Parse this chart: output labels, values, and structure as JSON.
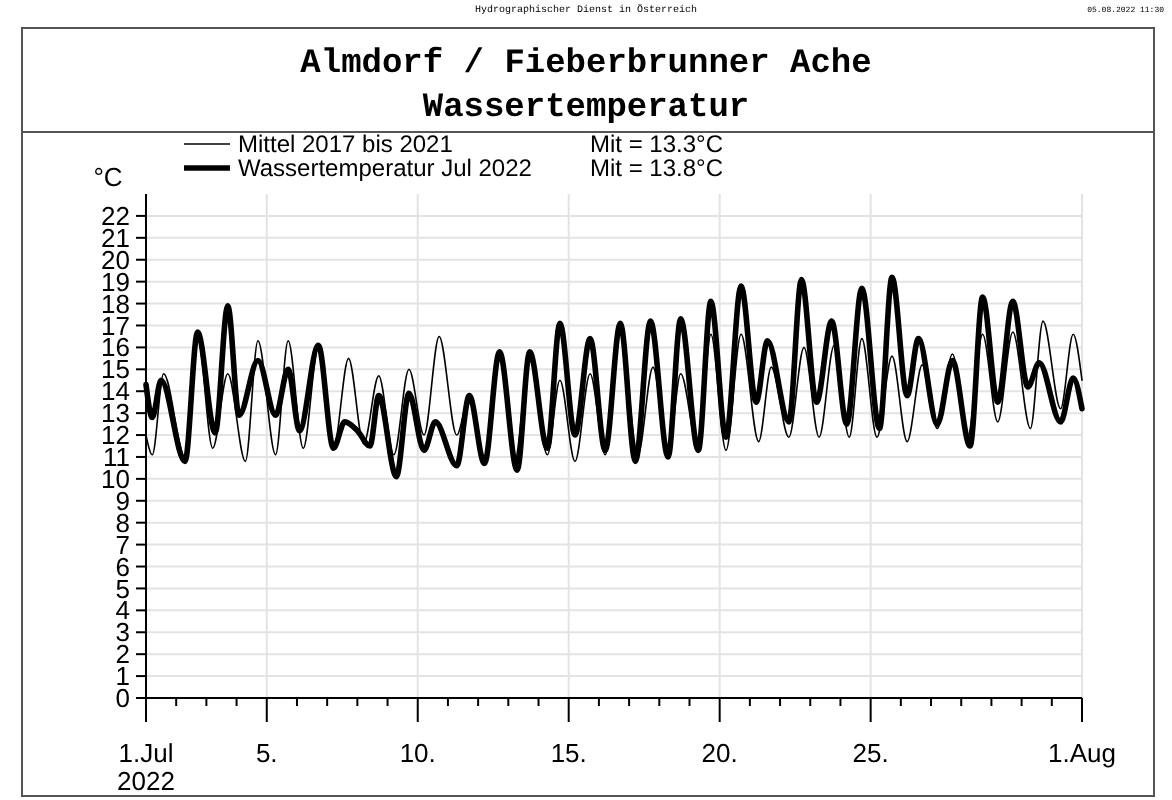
{
  "chart_data": {
    "type": "line",
    "title": "Almdorf / Fieberbrunner Ache\nWassertemperatur",
    "ylabel": "°C",
    "annotations": [
      "Hydrographischer Dienst in Österreich",
      "05.08.2022 11:30",
      "Mit = 13.3°C",
      "Mit = 13.8°C"
    ],
    "xlim": [
      "2022-07-01",
      "2022-08-01"
    ],
    "xticks": [
      {
        "value": "2022-07-01",
        "label": "1.Jul\n2022"
      },
      {
        "value": "2022-07-02",
        "label": null
      },
      {
        "value": "2022-07-03",
        "label": null
      },
      {
        "value": "2022-07-04",
        "label": null
      },
      {
        "value": "2022-07-05",
        "label": "5."
      },
      {
        "value": "2022-07-06",
        "label": null
      },
      {
        "value": "2022-07-07",
        "label": null
      },
      {
        "value": "2022-07-08",
        "label": null
      },
      {
        "value": "2022-07-09",
        "label": null
      },
      {
        "value": "2022-07-10",
        "label": "10."
      },
      {
        "value": "2022-07-11",
        "label": null
      },
      {
        "value": "2022-07-12",
        "label": null
      },
      {
        "value": "2022-07-13",
        "label": null
      },
      {
        "value": "2022-07-14",
        "label": null
      },
      {
        "value": "2022-07-15",
        "label": "15."
      },
      {
        "value": "2022-07-16",
        "label": null
      },
      {
        "value": "2022-07-17",
        "label": null
      },
      {
        "value": "2022-07-18",
        "label": null
      },
      {
        "value": "2022-07-19",
        "label": null
      },
      {
        "value": "2022-07-20",
        "label": "20."
      },
      {
        "value": "2022-07-21",
        "label": null
      },
      {
        "value": "2022-07-22",
        "label": null
      },
      {
        "value": "2022-07-23",
        "label": null
      },
      {
        "value": "2022-07-24",
        "label": null
      },
      {
        "value": "2022-07-25",
        "label": "25."
      },
      {
        "value": "2022-07-26",
        "label": null
      },
      {
        "value": "2022-07-27",
        "label": null
      },
      {
        "value": "2022-07-28",
        "label": null
      },
      {
        "value": "2022-07-29",
        "label": null
      },
      {
        "value": "2022-07-30",
        "label": null
      },
      {
        "value": "2022-07-31",
        "label": null
      },
      {
        "value": "2022-08-01",
        "label": "1.Aug"
      }
    ],
    "ylim": [
      0,
      23
    ],
    "yticks": [
      0,
      1,
      2,
      3,
      4,
      5,
      6,
      7,
      8,
      9,
      10,
      11,
      12,
      13,
      14,
      15,
      16,
      17,
      18,
      19,
      20,
      21,
      22
    ],
    "grid": true,
    "legend": "top",
    "marker": "none",
    "line_style": "solid",
    "series": [
      {
        "name": "Mittel 2017 bis 2021",
        "color": "#000000",
        "x": [
          "2022-07-01T00:00",
          "2022-07-01T05:00",
          "2022-07-01T14:00",
          "2022-07-02T07:00",
          "2022-07-02T17:00",
          "2022-07-03T05:00",
          "2022-07-03T17:00",
          "2022-07-04T07:00",
          "2022-07-04T17:00",
          "2022-07-05T07:00",
          "2022-07-05T17:00",
          "2022-07-06T05:00",
          "2022-07-06T17:00",
          "2022-07-07T05:00",
          "2022-07-07T17:00",
          "2022-07-08T05:00",
          "2022-07-08T17:00",
          "2022-07-09T05:00",
          "2022-07-09T17:00",
          "2022-07-10T05:00",
          "2022-07-10T17:00",
          "2022-07-11T07:00",
          "2022-07-11T17:00",
          "2022-07-12T05:00",
          "2022-07-12T17:00",
          "2022-07-13T05:00",
          "2022-07-13T17:00",
          "2022-07-14T07:00",
          "2022-07-14T17:00",
          "2022-07-15T05:00",
          "2022-07-15T17:00",
          "2022-07-16T05:00",
          "2022-07-16T17:00",
          "2022-07-17T07:00",
          "2022-07-17T19:00",
          "2022-07-18T07:00",
          "2022-07-18T17:00",
          "2022-07-19T07:00",
          "2022-07-19T17:00",
          "2022-07-20T05:00",
          "2022-07-20T17:00",
          "2022-07-21T07:00",
          "2022-07-21T17:00",
          "2022-07-22T07:00",
          "2022-07-22T19:00",
          "2022-07-23T07:00",
          "2022-07-23T19:00",
          "2022-07-24T07:00",
          "2022-07-24T17:00",
          "2022-07-25T05:00",
          "2022-07-25T17:00",
          "2022-07-26T05:00",
          "2022-07-26T17:00",
          "2022-07-27T05:00",
          "2022-07-27T17:00",
          "2022-07-28T05:00",
          "2022-07-28T17:00",
          "2022-07-29T05:00",
          "2022-07-29T17:00",
          "2022-07-30T07:00",
          "2022-07-30T17:00",
          "2022-07-31T07:00",
          "2022-07-31T17:00",
          "2022-08-01T00:00"
        ],
        "values": [
          12.0,
          11.1,
          14.8,
          11.0,
          16.5,
          11.4,
          14.8,
          10.8,
          16.3,
          11.1,
          16.3,
          11.4,
          16.0,
          11.4,
          15.5,
          11.6,
          14.7,
          11.1,
          15.0,
          12.0,
          16.5,
          12.0,
          13.8,
          10.8,
          15.6,
          10.8,
          15.6,
          11.1,
          14.5,
          10.8,
          14.8,
          11.1,
          16.7,
          11.1,
          15.1,
          11.1,
          14.8,
          11.3,
          16.6,
          11.3,
          16.6,
          11.7,
          15.1,
          11.9,
          16.0,
          11.9,
          16.1,
          11.9,
          16.4,
          11.9,
          15.6,
          11.7,
          15.2,
          12.3,
          15.7,
          11.9,
          16.6,
          12.6,
          16.7,
          12.3,
          17.2,
          13.2,
          16.6,
          14.5
        ]
      },
      {
        "name": "Wassertemperatur Jul 2022",
        "color": "#000000",
        "x": [
          "2022-07-01T00:00",
          "2022-07-01T05:00",
          "2022-07-01T12:00",
          "2022-07-02T07:00",
          "2022-07-02T17:00",
          "2022-07-03T07:00",
          "2022-07-03T17:00",
          "2022-07-04T02:00",
          "2022-07-04T17:00",
          "2022-07-05T07:00",
          "2022-07-05T17:00",
          "2022-07-06T02:00",
          "2022-07-06T17:00",
          "2022-07-07T05:00",
          "2022-07-07T14:00",
          "2022-07-08T00:00",
          "2022-07-08T10:00",
          "2022-07-08T17:00",
          "2022-07-09T07:00",
          "2022-07-09T17:00",
          "2022-07-10T05:00",
          "2022-07-10T14:00",
          "2022-07-11T07:00",
          "2022-07-11T17:00",
          "2022-07-12T05:00",
          "2022-07-12T17:00",
          "2022-07-13T07:00",
          "2022-07-13T17:00",
          "2022-07-14T07:00",
          "2022-07-14T17:00",
          "2022-07-15T05:00",
          "2022-07-15T17:00",
          "2022-07-16T05:00",
          "2022-07-16T17:00",
          "2022-07-17T05:00",
          "2022-07-17T17:00",
          "2022-07-18T07:00",
          "2022-07-18T17:00",
          "2022-07-19T07:00",
          "2022-07-19T17:00",
          "2022-07-20T05:00",
          "2022-07-20T17:00",
          "2022-07-21T05:00",
          "2022-07-21T14:00",
          "2022-07-22T07:00",
          "2022-07-22T17:00",
          "2022-07-23T05:00",
          "2022-07-23T17:00",
          "2022-07-24T05:00",
          "2022-07-24T17:00",
          "2022-07-25T07:00",
          "2022-07-25T17:00",
          "2022-07-26T05:00",
          "2022-07-26T14:00",
          "2022-07-27T05:00",
          "2022-07-27T17:00",
          "2022-07-28T07:00",
          "2022-07-28T17:00",
          "2022-07-29T05:00",
          "2022-07-29T17:00",
          "2022-07-30T05:00",
          "2022-07-30T14:00",
          "2022-07-31T07:00",
          "2022-07-31T17:00",
          "2022-08-01T00:00"
        ],
        "values": [
          14.3,
          12.8,
          14.5,
          10.8,
          16.7,
          12.1,
          17.9,
          12.9,
          15.4,
          12.9,
          15.0,
          12.2,
          16.1,
          11.4,
          12.6,
          12.2,
          11.5,
          13.8,
          10.1,
          13.9,
          11.3,
          12.6,
          10.6,
          13.8,
          10.7,
          15.8,
          10.4,
          15.8,
          11.4,
          17.1,
          12.0,
          16.4,
          11.3,
          17.1,
          10.8,
          17.2,
          11.0,
          17.3,
          11.3,
          18.1,
          11.9,
          18.8,
          13.5,
          16.3,
          12.6,
          19.1,
          13.5,
          17.2,
          12.5,
          18.7,
          12.3,
          19.2,
          13.8,
          16.4,
          12.5,
          15.4,
          11.5,
          18.3,
          13.5,
          18.1,
          14.2,
          15.3,
          12.6,
          14.6,
          13.2
        ]
      }
    ]
  }
}
